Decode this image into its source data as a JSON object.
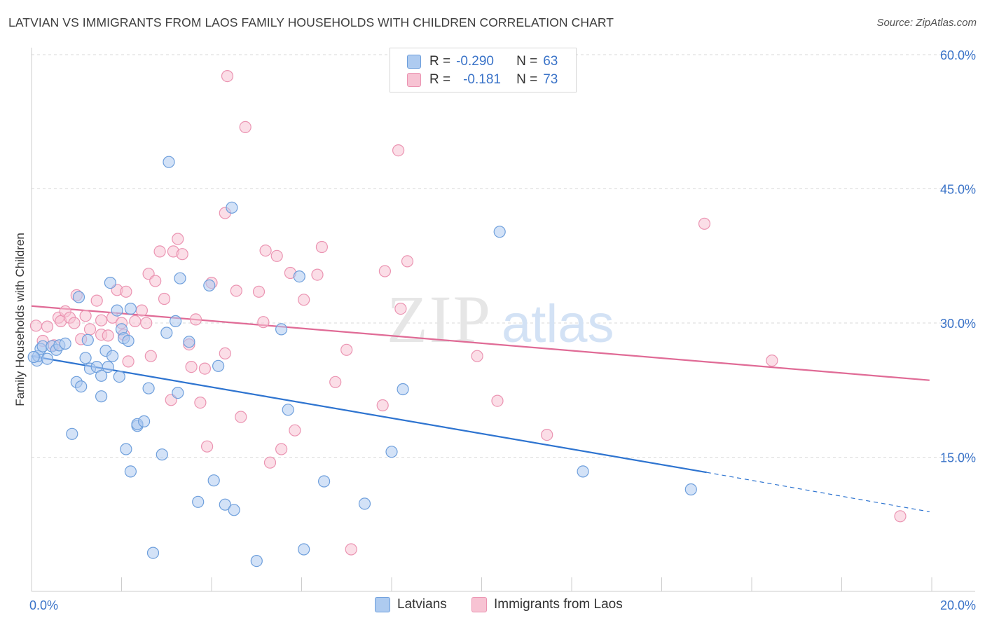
{
  "title": "LATVIAN VS IMMIGRANTS FROM LAOS FAMILY HOUSEHOLDS WITH CHILDREN CORRELATION CHART",
  "source": "Source: ZipAtlas.com",
  "watermark": {
    "zip": "ZIP",
    "atlas": "atlas"
  },
  "colors": {
    "latvians_fill": "#aecbf0",
    "latvians_stroke": "#6e9fdc",
    "latvians_line": "#2e74d0",
    "laos_fill": "#f7c3d3",
    "laos_stroke": "#eb94b2",
    "laos_line": "#e06b96",
    "grid": "#d9d9d9",
    "tick_label": "#3a73c8"
  },
  "stats_legend": {
    "row1": {
      "r_label": "R =",
      "r_value": "-0.290",
      "n_label": "N =",
      "n_value": "63"
    },
    "row2": {
      "r_label": "R =",
      "r_value": "-0.181",
      "n_label": "N =",
      "n_value": "73"
    }
  },
  "bottom_legend": {
    "latvians": "Latvians",
    "laos": "Immigrants from Laos"
  },
  "chart_data": {
    "type": "scatter",
    "title": "LATVIAN VS IMMIGRANTS FROM LAOS FAMILY HOUSEHOLDS WITH CHILDREN CORRELATION CHART",
    "xlabel": "",
    "ylabel": "Family Households with Children",
    "xlim": [
      0,
      20
    ],
    "ylim": [
      0,
      60
    ],
    "x_tick_labels": [
      "0.0%",
      "20.0%"
    ],
    "y_ticks": [
      15,
      30,
      45,
      60
    ],
    "y_tick_labels": [
      "15.0%",
      "30.0%",
      "45.0%",
      "60.0%"
    ],
    "grid": true,
    "legend_position": "top-center",
    "series": [
      {
        "name": "Latvians",
        "r": -0.29,
        "n": 63,
        "trend": {
          "x_start": 0,
          "y_start": 26.3,
          "x_end": 15.0,
          "y_end": 13.3,
          "dashed_to_x": 19.95,
          "dashed_to_y": 8.9
        },
        "points": [
          [
            0.12,
            25.8
          ],
          [
            0.15,
            26.3
          ],
          [
            0.2,
            27.1
          ],
          [
            0.25,
            27.4
          ],
          [
            0.35,
            26.0
          ],
          [
            0.45,
            27.4
          ],
          [
            0.55,
            27.0
          ],
          [
            0.62,
            27.5
          ],
          [
            0.75,
            27.7
          ],
          [
            0.9,
            17.6
          ],
          [
            1.0,
            23.4
          ],
          [
            1.05,
            32.9
          ],
          [
            1.1,
            22.9
          ],
          [
            1.2,
            26.1
          ],
          [
            1.25,
            28.1
          ],
          [
            1.3,
            24.9
          ],
          [
            1.45,
            25.1
          ],
          [
            1.55,
            24.1
          ],
          [
            1.55,
            21.8
          ],
          [
            1.65,
            26.9
          ],
          [
            1.7,
            25.1
          ],
          [
            1.75,
            34.5
          ],
          [
            1.8,
            26.3
          ],
          [
            1.9,
            31.4
          ],
          [
            1.95,
            24.0
          ],
          [
            2.0,
            29.3
          ],
          [
            2.05,
            28.3
          ],
          [
            2.1,
            15.9
          ],
          [
            2.15,
            28.0
          ],
          [
            2.2,
            13.4
          ],
          [
            2.2,
            31.6
          ],
          [
            2.35,
            18.5
          ],
          [
            2.35,
            18.7
          ],
          [
            2.5,
            19.0
          ],
          [
            2.6,
            22.7
          ],
          [
            2.7,
            4.3
          ],
          [
            2.9,
            15.3
          ],
          [
            3.0,
            28.9
          ],
          [
            3.05,
            48.0
          ],
          [
            3.2,
            30.2
          ],
          [
            3.25,
            22.2
          ],
          [
            3.3,
            35.0
          ],
          [
            3.5,
            27.9
          ],
          [
            3.7,
            10.0
          ],
          [
            3.95,
            34.2
          ],
          [
            4.05,
            12.4
          ],
          [
            4.15,
            25.2
          ],
          [
            4.3,
            9.7
          ],
          [
            4.45,
            42.9
          ],
          [
            4.5,
            9.1
          ],
          [
            5.0,
            3.4
          ],
          [
            5.55,
            29.3
          ],
          [
            5.7,
            20.3
          ],
          [
            5.95,
            35.2
          ],
          [
            6.05,
            4.7
          ],
          [
            6.5,
            12.3
          ],
          [
            7.4,
            9.8
          ],
          [
            8.0,
            15.6
          ],
          [
            8.25,
            22.6
          ],
          [
            10.4,
            40.2
          ],
          [
            12.25,
            13.4
          ],
          [
            14.65,
            11.4
          ],
          [
            0.05,
            26.2
          ]
        ]
      },
      {
        "name": "Immigrants from Laos",
        "r": -0.181,
        "n": 73,
        "trend": {
          "x_start": 0,
          "y_start": 31.9,
          "x_end": 19.95,
          "y_end": 23.6
        },
        "points": [
          [
            0.1,
            29.7
          ],
          [
            0.25,
            28.0
          ],
          [
            0.35,
            29.6
          ],
          [
            0.5,
            27.5
          ],
          [
            0.6,
            30.6
          ],
          [
            0.65,
            30.2
          ],
          [
            0.75,
            31.3
          ],
          [
            0.85,
            30.6
          ],
          [
            0.95,
            30.0
          ],
          [
            1.0,
            33.1
          ],
          [
            1.1,
            28.2
          ],
          [
            1.2,
            30.8
          ],
          [
            1.3,
            29.3
          ],
          [
            1.45,
            32.5
          ],
          [
            1.55,
            30.3
          ],
          [
            1.55,
            28.7
          ],
          [
            1.7,
            28.6
          ],
          [
            1.8,
            30.6
          ],
          [
            1.9,
            33.7
          ],
          [
            2.0,
            30.0
          ],
          [
            2.05,
            28.7
          ],
          [
            2.1,
            33.5
          ],
          [
            2.15,
            25.7
          ],
          [
            2.3,
            30.2
          ],
          [
            2.45,
            31.4
          ],
          [
            2.55,
            30.0
          ],
          [
            2.6,
            35.5
          ],
          [
            2.65,
            26.3
          ],
          [
            2.75,
            34.7
          ],
          [
            2.85,
            38.0
          ],
          [
            2.95,
            32.7
          ],
          [
            3.1,
            21.4
          ],
          [
            3.15,
            38.0
          ],
          [
            3.25,
            39.4
          ],
          [
            3.35,
            37.7
          ],
          [
            3.5,
            27.6
          ],
          [
            3.55,
            25.1
          ],
          [
            3.65,
            30.4
          ],
          [
            3.75,
            21.1
          ],
          [
            3.85,
            24.9
          ],
          [
            3.9,
            16.2
          ],
          [
            4.0,
            34.5
          ],
          [
            4.3,
            26.6
          ],
          [
            4.3,
            42.3
          ],
          [
            4.35,
            57.6
          ],
          [
            4.55,
            33.6
          ],
          [
            4.65,
            19.5
          ],
          [
            4.75,
            51.9
          ],
          [
            5.05,
            33.5
          ],
          [
            5.15,
            30.1
          ],
          [
            5.2,
            38.1
          ],
          [
            5.3,
            14.4
          ],
          [
            5.45,
            37.5
          ],
          [
            5.55,
            15.9
          ],
          [
            5.75,
            35.6
          ],
          [
            5.85,
            18.0
          ],
          [
            6.05,
            32.6
          ],
          [
            6.35,
            35.4
          ],
          [
            6.45,
            38.5
          ],
          [
            6.75,
            23.4
          ],
          [
            7.0,
            27.0
          ],
          [
            7.1,
            4.7
          ],
          [
            7.8,
            20.8
          ],
          [
            7.85,
            35.8
          ],
          [
            8.15,
            49.3
          ],
          [
            8.2,
            31.6
          ],
          [
            8.35,
            36.9
          ],
          [
            9.9,
            26.3
          ],
          [
            10.35,
            21.3
          ],
          [
            11.45,
            17.5
          ],
          [
            14.95,
            41.1
          ],
          [
            16.45,
            25.8
          ],
          [
            19.3,
            8.4
          ]
        ]
      }
    ]
  }
}
